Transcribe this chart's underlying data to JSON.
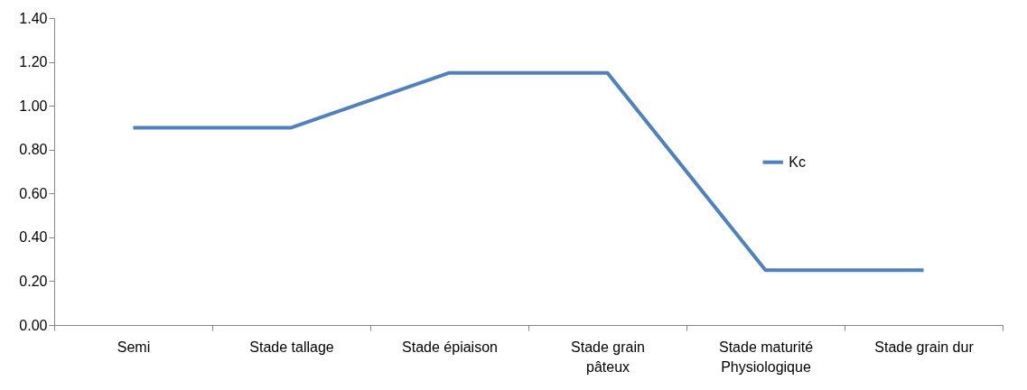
{
  "chart_data": {
    "type": "line",
    "categories": [
      "Semi",
      "Stade tallage",
      "Stade épiaison",
      "Stade grain pâteux",
      "Stade maturité Physiologique",
      "Stade grain dur"
    ],
    "series": [
      {
        "name": "Kc",
        "color": "#4f81bd",
        "values": [
          0.9,
          0.9,
          1.15,
          1.15,
          0.25,
          0.25
        ]
      }
    ],
    "ylim": [
      0,
      1.4
    ],
    "yticks": [
      {
        "value": 0,
        "label": "0.00"
      },
      {
        "value": 0.2,
        "label": "0.20"
      },
      {
        "value": 0.4,
        "label": "0.40"
      },
      {
        "value": 0.6,
        "label": "0.60"
      },
      {
        "value": 0.8,
        "label": "0.80"
      },
      {
        "value": 1,
        "label": "1.00"
      },
      {
        "value": 1.2,
        "label": "1.20"
      },
      {
        "value": 1.4,
        "label": "1.40"
      }
    ],
    "grid": false,
    "legend": "right",
    "marker": "none",
    "line_style": "solid"
  }
}
